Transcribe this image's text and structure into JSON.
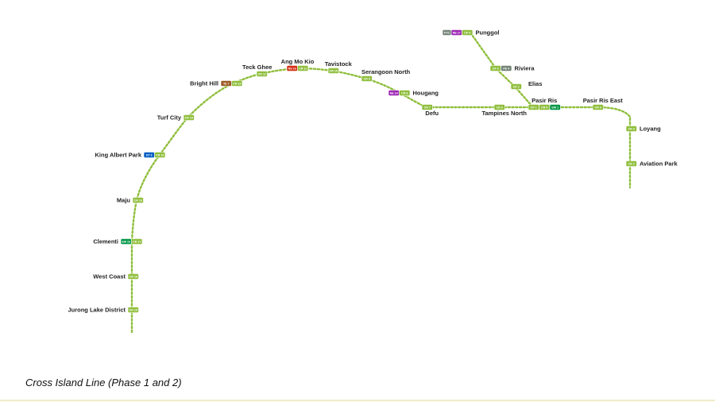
{
  "caption": "Cross Island Line (Phase 1 and 2)",
  "colors": {
    "cross_island_line": "#8fbe3c",
    "north_south_line": "#d42e12",
    "north_east_line": "#9e28b5",
    "circle_line": "#fa9e0d",
    "downtown_line": "#005ec4",
    "east_west_line": "#009645",
    "thomson_east_coast_line": "#9d5b25",
    "lrt": "#748477"
  },
  "stations": [
    {
      "name": "Jurong Lake District",
      "codes": [
        "CR 19"
      ]
    },
    {
      "name": "West Coast",
      "codes": [
        "CR 18"
      ]
    },
    {
      "name": "Clementi",
      "codes": [
        "EW 23",
        "CR 17"
      ]
    },
    {
      "name": "Maju",
      "codes": [
        "CR 16"
      ]
    },
    {
      "name": "King Albert Park",
      "codes": [
        "DT 6",
        "CR 15"
      ]
    },
    {
      "name": "Turf City",
      "codes": [
        "CR 14"
      ]
    },
    {
      "name": "Bright Hill",
      "codes": [
        "TE 7",
        "CR 13"
      ]
    },
    {
      "name": "Teck Ghee",
      "codes": [
        "CR 12"
      ]
    },
    {
      "name": "Ang Mo Kio",
      "codes": [
        "NS 16",
        "CR 11"
      ]
    },
    {
      "name": "Tavistock",
      "codes": [
        "CR 10"
      ]
    },
    {
      "name": "Serangoon North",
      "codes": [
        "CR 9"
      ]
    },
    {
      "name": "Hougang",
      "codes": [
        "NE 14",
        "CR 8"
      ]
    },
    {
      "name": "Defu",
      "codes": [
        "CR 7"
      ]
    },
    {
      "name": "Tampines North",
      "codes": [
        "CR 6"
      ]
    },
    {
      "name": "Pasir Ris",
      "codes": [
        "CP 1",
        "CR 5",
        "EW 1"
      ]
    },
    {
      "name": "Elias",
      "codes": [
        "CP 2"
      ]
    },
    {
      "name": "Riviera",
      "codes": [
        "CP 3",
        "PE 4"
      ]
    },
    {
      "name": "Punggol",
      "codes": [
        "PTC",
        "NE 17",
        "CP 4"
      ]
    },
    {
      "name": "Pasir Ris East",
      "codes": [
        "CR 4"
      ]
    },
    {
      "name": "Loyang",
      "codes": [
        "CR 3"
      ]
    },
    {
      "name": "Aviation Park",
      "codes": [
        "CR 2"
      ]
    }
  ]
}
